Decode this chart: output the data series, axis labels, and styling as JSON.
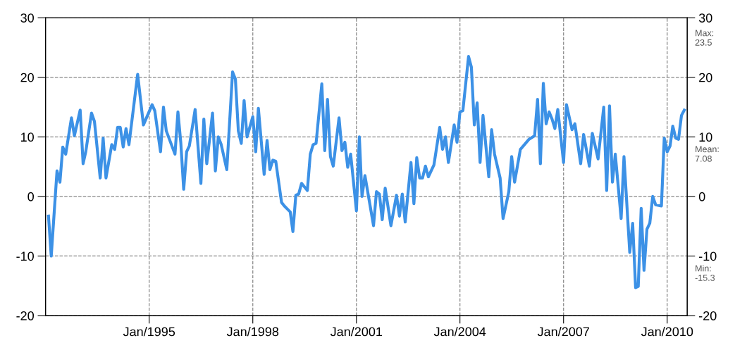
{
  "chart_data": {
    "type": "line",
    "grid": true,
    "marker": "none",
    "line_style": "solid",
    "xlim": [
      "1992-01",
      "2010-08"
    ],
    "xticks": [
      {
        "value": "1995-01",
        "label": "Jan/1995"
      },
      {
        "value": "1998-01",
        "label": "Jan/1998"
      },
      {
        "value": "2001-01",
        "label": "Jan/2001"
      },
      {
        "value": "2004-01",
        "label": "Jan/2004"
      },
      {
        "value": "2007-01",
        "label": "Jan/2007"
      },
      {
        "value": "2010-01",
        "label": "Jan/2010"
      }
    ],
    "ylim": [
      -20,
      30
    ],
    "yticks": [
      -20,
      -10,
      0,
      10,
      20,
      30
    ],
    "y2lim": [
      -20,
      30
    ],
    "y2ticks": [
      -20,
      -10,
      0,
      10,
      20,
      30
    ],
    "annotations": [
      "Max:\n23.5",
      "Mean:\n7.08",
      "Min:\n-15.3"
    ],
    "series": [
      {
        "color": "#3c91e6",
        "x": [
          "1992-02",
          "1992-03",
          "1992-05",
          "1992-06",
          "1992-07",
          "1992-08",
          "1992-10",
          "1992-11",
          "1993-01",
          "1993-02",
          "1993-03",
          "1993-05",
          "1993-06",
          "1993-08",
          "1993-09",
          "1993-10",
          "1993-12",
          "1994-01",
          "1994-02",
          "1994-03",
          "1994-04",
          "1994-05",
          "1994-06",
          "1994-09",
          "1994-11",
          "1995-02",
          "1995-03",
          "1995-05",
          "1995-06",
          "1995-07",
          "1995-10",
          "1995-11",
          "1995-12",
          "1996-01",
          "1996-02",
          "1996-03",
          "1996-05",
          "1996-07",
          "1996-08",
          "1996-09",
          "1996-11",
          "1996-12",
          "1997-01",
          "1997-02",
          "1997-04",
          "1997-06",
          "1997-07",
          "1997-08",
          "1997-09",
          "1997-10",
          "1997-11",
          "1998-01",
          "1998-02",
          "1998-03",
          "1998-05",
          "1998-06",
          "1998-07",
          "1998-08",
          "1998-09",
          "1998-11",
          "1998-12",
          "1999-02",
          "1999-03",
          "1999-04",
          "1999-05",
          "1999-06",
          "1999-08",
          "1999-09",
          "1999-10",
          "1999-11",
          "2000-01",
          "2000-02",
          "2000-03",
          "2000-04",
          "2000-05",
          "2000-07",
          "2000-08",
          "2000-09",
          "2000-10",
          "2000-11",
          "2001-01",
          "2001-02",
          "2001-03",
          "2001-04",
          "2001-07",
          "2001-08",
          "2001-09",
          "2001-10",
          "2001-11",
          "2002-01",
          "2002-03",
          "2002-04",
          "2002-05",
          "2002-06",
          "2002-08",
          "2002-09",
          "2002-10",
          "2002-11",
          "2002-12",
          "2003-01",
          "2003-02",
          "2003-04",
          "2003-06",
          "2003-07",
          "2003-08",
          "2003-09",
          "2003-11",
          "2003-12",
          "2004-01",
          "2004-02",
          "2004-04",
          "2004-05",
          "2004-06",
          "2004-07",
          "2004-08",
          "2004-09",
          "2004-11",
          "2004-12",
          "2005-01",
          "2005-03",
          "2005-04",
          "2005-06",
          "2005-07",
          "2005-08",
          "2005-10",
          "2006-01",
          "2006-03",
          "2006-04",
          "2006-05",
          "2006-06",
          "2006-07",
          "2006-08",
          "2006-09",
          "2006-10",
          "2006-11",
          "2007-01",
          "2007-02",
          "2007-03",
          "2007-04",
          "2007-05",
          "2007-07",
          "2007-08",
          "2007-10",
          "2007-11",
          "2008-01",
          "2008-03",
          "2008-04",
          "2008-05",
          "2008-06",
          "2008-07",
          "2008-09",
          "2008-10",
          "2008-12",
          "2009-01",
          "2009-02",
          "2009-03",
          "2009-04",
          "2009-05",
          "2009-06",
          "2009-07",
          "2009-08",
          "2009-09",
          "2009-11",
          "2009-12",
          "2010-01",
          "2010-02",
          "2010-03",
          "2010-04",
          "2010-05",
          "2010-06",
          "2010-07"
        ],
        "values": [
          -3.3,
          -10.0,
          4.3,
          2.4,
          8.3,
          7.1,
          13.2,
          10.2,
          14.5,
          5.5,
          7.5,
          14.0,
          12.6,
          3.1,
          9.8,
          3.1,
          8.7,
          7.9,
          11.6,
          11.6,
          8.3,
          11.4,
          8.7,
          20.5,
          12.0,
          15.4,
          14.4,
          7.5,
          15.0,
          11.0,
          7.1,
          14.2,
          9.1,
          1.2,
          7.5,
          8.5,
          14.6,
          2.2,
          13.0,
          5.5,
          14.0,
          4.3,
          10.0,
          8.7,
          4.5,
          20.9,
          19.7,
          11.0,
          8.9,
          16.1,
          10.0,
          13.4,
          7.5,
          14.8,
          3.7,
          9.4,
          4.5,
          6.1,
          5.9,
          -1.0,
          -1.6,
          -2.6,
          -5.9,
          0.2,
          0.4,
          2.2,
          1.0,
          7.1,
          8.7,
          8.9,
          18.9,
          7.7,
          16.3,
          6.7,
          5.1,
          13.2,
          7.7,
          9.1,
          4.9,
          7.1,
          -2.4,
          10.0,
          0,
          3.5,
          -4.9,
          0.8,
          0.4,
          -3.9,
          1.4,
          -4.9,
          0.2,
          -3.3,
          0.4,
          -4.3,
          5.7,
          -1.2,
          6.5,
          3.1,
          3.1,
          5.1,
          3.3,
          5.3,
          11.6,
          7.9,
          10.0,
          5.7,
          12.0,
          9.1,
          14.2,
          14.4,
          23.5,
          21.7,
          12.0,
          15.7,
          5.7,
          13.6,
          3.3,
          11.2,
          7.1,
          3.1,
          -3.7,
          0.8,
          6.7,
          2.4,
          7.9,
          9.6,
          10.2,
          16.3,
          5.5,
          19.0,
          12.2,
          14.2,
          13.0,
          11.4,
          14.6,
          5.7,
          15.4,
          13.4,
          11.2,
          12.2,
          5.5,
          10.4,
          5.1,
          10.6,
          6.3,
          15.0,
          1.0,
          15.2,
          2.4,
          7.1,
          -3.7,
          6.7,
          -9.4,
          -4.5,
          -15.3,
          -15.1,
          -2.0,
          -12.4,
          -5.5,
          -4.5,
          0,
          -1.4,
          -1.6,
          9.8,
          7.5,
          8.5,
          11.8,
          9.8,
          9.6,
          13.6,
          14.5
        ]
      }
    ]
  }
}
